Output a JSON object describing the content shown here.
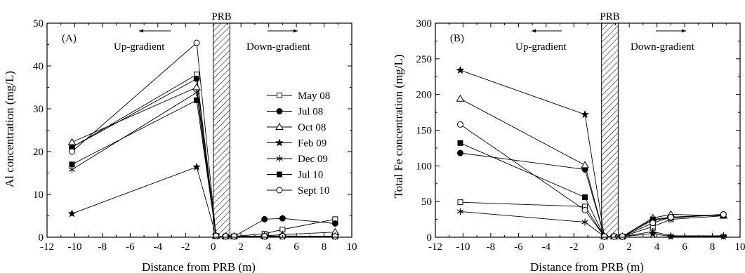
{
  "series_styles": [
    {
      "name": "May 08",
      "marker": "square-open"
    },
    {
      "name": "Jul 08",
      "marker": "circle-filled"
    },
    {
      "name": "Oct 08",
      "marker": "triangle-open"
    },
    {
      "name": "Feb 09",
      "marker": "star-filled"
    },
    {
      "name": "Dec 09",
      "marker": "asterisk"
    },
    {
      "name": "Jul 10",
      "marker": "square-filled"
    },
    {
      "name": "Sept 10",
      "marker": "circle-open"
    }
  ],
  "chart_data": [
    {
      "type": "line",
      "panel_label": "(A)",
      "barrier_label": "PRB",
      "barrier_x": [
        0,
        1.2
      ],
      "upgradient_label": "Up-gradient",
      "downgradient_label": "Down-gradient",
      "xlabel": "Distance from PRB (m)",
      "ylabel": "Al concentration (mg/L)",
      "xlim": [
        -12,
        10
      ],
      "ylim": [
        0,
        50
      ],
      "xticks": [
        -12,
        -10,
        -8,
        -6,
        -4,
        -2,
        0,
        2,
        4,
        6,
        8,
        10
      ],
      "yticks": [
        0,
        10,
        20,
        30,
        40,
        50
      ],
      "legend_position": "right",
      "series": [
        {
          "name": "May 08",
          "points": [
            [
              -10.2,
              21.0
            ],
            [
              -1.2,
              38.0
            ],
            [
              0.2,
              0.3
            ],
            [
              0.9,
              0.2
            ],
            [
              1.5,
              0.2
            ],
            [
              3.7,
              0.8
            ],
            [
              5.0,
              1.8
            ],
            [
              8.8,
              4.2
            ]
          ]
        },
        {
          "name": "Jul 08",
          "points": [
            [
              -10.2,
              21.0
            ],
            [
              -1.2,
              37.0
            ],
            [
              0.2,
              0.3
            ],
            [
              0.9,
              0.2
            ],
            [
              1.5,
              0.2
            ],
            [
              3.7,
              4.2
            ],
            [
              5.0,
              4.4
            ],
            [
              8.8,
              3.2
            ]
          ]
        },
        {
          "name": "Oct 08",
          "points": [
            [
              -10.2,
              22.2
            ],
            [
              -1.2,
              35.0
            ],
            [
              0.2,
              0.3
            ],
            [
              0.9,
              0.2
            ],
            [
              1.5,
              0.2
            ],
            [
              3.7,
              0.3
            ],
            [
              5.0,
              0.6
            ],
            [
              8.8,
              1.2
            ]
          ]
        },
        {
          "name": "Feb 09",
          "points": [
            [
              -10.2,
              5.5
            ],
            [
              -1.2,
              16.4
            ],
            [
              0.2,
              0.3
            ],
            [
              0.9,
              0.2
            ],
            [
              1.5,
              0.2
            ],
            [
              3.7,
              0.2
            ],
            [
              5.0,
              0.2
            ],
            [
              8.8,
              0.2
            ]
          ]
        },
        {
          "name": "Dec 09",
          "points": [
            [
              -10.2,
              15.8
            ],
            [
              -1.2,
              33.8
            ],
            [
              0.2,
              0.3
            ],
            [
              0.9,
              0.2
            ],
            [
              1.5,
              0.2
            ],
            [
              3.7,
              0.2
            ],
            [
              5.0,
              0.3
            ],
            [
              8.8,
              0.2
            ]
          ]
        },
        {
          "name": "Jul 10",
          "points": [
            [
              -10.2,
              17.0
            ],
            [
              -1.2,
              32.0
            ],
            [
              0.2,
              0.3
            ],
            [
              0.9,
              0.2
            ],
            [
              1.5,
              0.2
            ],
            [
              3.7,
              0.2
            ],
            [
              5.0,
              0.2
            ],
            [
              8.8,
              0.2
            ]
          ]
        },
        {
          "name": "Sept 10",
          "points": [
            [
              -10.2,
              20.0
            ],
            [
              -1.2,
              45.4
            ],
            [
              0.2,
              0.3
            ],
            [
              0.9,
              0.2
            ],
            [
              1.5,
              0.2
            ],
            [
              3.7,
              0.2
            ],
            [
              5.0,
              0.2
            ],
            [
              8.8,
              0.2
            ]
          ]
        }
      ]
    },
    {
      "type": "line",
      "panel_label": "(B)",
      "barrier_label": "PRB",
      "barrier_x": [
        0,
        1.2
      ],
      "upgradient_label": "Up-gradient",
      "downgradient_label": "Down-gradient",
      "xlabel": "Distance from PRB (m)",
      "ylabel": "Total Fe concentration (mg/L)",
      "xlim": [
        -12,
        10
      ],
      "ylim": [
        0,
        300
      ],
      "xticks": [
        -12,
        -10,
        -8,
        -6,
        -4,
        -2,
        0,
        2,
        4,
        6,
        8,
        10
      ],
      "yticks": [
        0,
        50,
        100,
        150,
        200,
        250,
        300
      ],
      "series": [
        {
          "name": "May 08",
          "points": [
            [
              -10.2,
              49.0
            ],
            [
              -1.2,
              43.0
            ],
            [
              0.2,
              1.0
            ],
            [
              0.9,
              1.0
            ],
            [
              1.5,
              1.0
            ],
            [
              3.7,
              15.0
            ],
            [
              5.0,
              25.0
            ],
            [
              8.8,
              30.0
            ]
          ]
        },
        {
          "name": "Jul 08",
          "points": [
            [
              -10.2,
              118.0
            ],
            [
              -1.2,
              95.0
            ],
            [
              0.2,
              1.0
            ],
            [
              0.9,
              1.0
            ],
            [
              1.5,
              1.0
            ],
            [
              3.7,
              24.0
            ],
            [
              5.0,
              27.0
            ],
            [
              8.8,
              32.0
            ]
          ]
        },
        {
          "name": "Oct 08",
          "points": [
            [
              -10.2,
              194.0
            ],
            [
              -1.2,
              101.0
            ],
            [
              0.2,
              1.0
            ],
            [
              0.9,
              1.0
            ],
            [
              1.5,
              1.0
            ],
            [
              3.7,
              27.0
            ],
            [
              5.0,
              32.0
            ],
            [
              8.8,
              30.0
            ]
          ]
        },
        {
          "name": "Feb 09",
          "points": [
            [
              -10.2,
              234.0
            ],
            [
              -1.2,
              172.0
            ],
            [
              0.2,
              1.0
            ],
            [
              0.9,
              1.0
            ],
            [
              1.5,
              1.0
            ],
            [
              3.7,
              5.0
            ],
            [
              5.0,
              1.0
            ],
            [
              8.8,
              1.0
            ]
          ]
        },
        {
          "name": "Dec 09",
          "points": [
            [
              -10.2,
              36.0
            ],
            [
              -1.2,
              21.0
            ],
            [
              0.2,
              1.0
            ],
            [
              0.9,
              1.0
            ],
            [
              1.5,
              1.0
            ],
            [
              3.7,
              8.0
            ],
            [
              5.0,
              2.0
            ],
            [
              8.8,
              2.0
            ]
          ]
        },
        {
          "name": "Jul 10",
          "points": [
            [
              -10.2,
              132.0
            ],
            [
              -1.2,
              56.0
            ],
            [
              0.2,
              1.0
            ],
            [
              0.9,
              1.0
            ],
            [
              1.5,
              1.0
            ],
            [
              3.7,
              25.0
            ],
            [
              5.0,
              28.0
            ],
            [
              8.8,
              31.0
            ]
          ]
        },
        {
          "name": "Sept 10",
          "points": [
            [
              -10.2,
              158.0
            ],
            [
              -1.2,
              38.0
            ],
            [
              0.2,
              1.0
            ],
            [
              0.9,
              1.0
            ],
            [
              1.5,
              1.0
            ],
            [
              3.7,
              20.0
            ],
            [
              5.0,
              28.0
            ],
            [
              8.8,
              32.0
            ]
          ]
        }
      ]
    }
  ]
}
